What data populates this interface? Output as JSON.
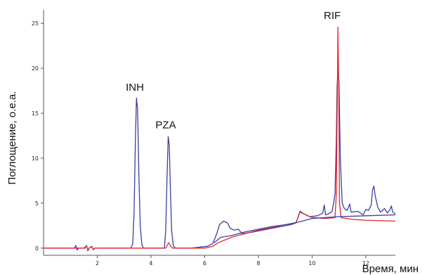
{
  "chart_data": {
    "type": "line",
    "title": "",
    "xlabel": "Время, мин",
    "ylabel": "Поглощение, о.е.а.",
    "xlim": [
      0,
      13.1
    ],
    "ylim": [
      -0.8,
      26.5
    ],
    "x_ticks": [
      2,
      4,
      6,
      8,
      10,
      12
    ],
    "y_ticks": [
      0,
      5,
      10,
      15,
      20,
      25
    ],
    "x_tick_labels": [
      "2",
      "4",
      "6",
      "8",
      "10",
      "12"
    ],
    "y_tick_labels": [
      "0",
      "5",
      "10",
      "15",
      "20",
      "25"
    ],
    "grid": false,
    "legend": "none",
    "annotations": [
      {
        "text": "INH",
        "x": 3.4,
        "y": 17.5
      },
      {
        "text": "PZA",
        "x": 4.55,
        "y": 13.3
      },
      {
        "text": "RIF",
        "x": 10.75,
        "y": 25.5
      }
    ],
    "series": [
      {
        "color": "#3b3fa0",
        "points": [
          [
            0,
            0
          ],
          [
            1.15,
            0
          ],
          [
            1.2,
            0.3
          ],
          [
            1.25,
            -0.2
          ],
          [
            1.3,
            0
          ],
          [
            1.55,
            0
          ],
          [
            1.6,
            0.3
          ],
          [
            1.65,
            -0.3
          ],
          [
            1.7,
            0
          ],
          [
            1.8,
            0.2
          ],
          [
            1.85,
            -0.2
          ],
          [
            1.9,
            0
          ],
          [
            3.25,
            0
          ],
          [
            3.32,
            0.5
          ],
          [
            3.37,
            4
          ],
          [
            3.42,
            12
          ],
          [
            3.46,
            16.7
          ],
          [
            3.5,
            15.5
          ],
          [
            3.55,
            8
          ],
          [
            3.6,
            2.5
          ],
          [
            3.66,
            0.4
          ],
          [
            3.72,
            0
          ],
          [
            4.5,
            0
          ],
          [
            4.55,
            2
          ],
          [
            4.6,
            8
          ],
          [
            4.64,
            12.4
          ],
          [
            4.68,
            11.5
          ],
          [
            4.72,
            7
          ],
          [
            4.77,
            2
          ],
          [
            4.83,
            0.3
          ],
          [
            4.9,
            0
          ],
          [
            5.5,
            0
          ],
          [
            6.1,
            0.2
          ],
          [
            6.3,
            0.5
          ],
          [
            6.45,
            1.6
          ],
          [
            6.55,
            2.6
          ],
          [
            6.7,
            3
          ],
          [
            6.85,
            2.8
          ],
          [
            6.95,
            2.2
          ],
          [
            7.1,
            2.0
          ],
          [
            7.25,
            2.1
          ],
          [
            7.4,
            1.6
          ],
          [
            7.8,
            1.8
          ],
          [
            8.5,
            2.2
          ],
          [
            9.2,
            2.6
          ],
          [
            9.4,
            2.8
          ],
          [
            9.55,
            4.1
          ],
          [
            9.7,
            3.8
          ],
          [
            9.9,
            3.5
          ],
          [
            10.2,
            3.6
          ],
          [
            10.4,
            3.9
          ],
          [
            10.45,
            4.8
          ],
          [
            10.5,
            3.7
          ],
          [
            10.6,
            3.8
          ],
          [
            10.75,
            4.1
          ],
          [
            10.85,
            6
          ],
          [
            10.9,
            12
          ],
          [
            10.93,
            18
          ],
          [
            10.96,
            19.7
          ],
          [
            11.0,
            18.5
          ],
          [
            11.05,
            10
          ],
          [
            11.12,
            5
          ],
          [
            11.2,
            4.4
          ],
          [
            11.3,
            4.2
          ],
          [
            11.4,
            4.9
          ],
          [
            11.45,
            4.0
          ],
          [
            11.7,
            4.1
          ],
          [
            11.9,
            3.7
          ],
          [
            12.0,
            4.3
          ],
          [
            12.1,
            4.2
          ],
          [
            12.2,
            4.8
          ],
          [
            12.25,
            6.5
          ],
          [
            12.3,
            6.9
          ],
          [
            12.35,
            5.8
          ],
          [
            12.45,
            4.5
          ],
          [
            12.55,
            4.0
          ],
          [
            12.7,
            4.4
          ],
          [
            12.8,
            3.9
          ],
          [
            12.9,
            4.3
          ],
          [
            12.95,
            4.7
          ],
          [
            13.0,
            4.0
          ],
          [
            13.1,
            3.8
          ]
        ]
      },
      {
        "color": "#e8242a",
        "points": [
          [
            0,
            0
          ],
          [
            1.5,
            0
          ],
          [
            1.6,
            0.25
          ],
          [
            1.65,
            -0.2
          ],
          [
            1.7,
            0
          ],
          [
            1.8,
            0.15
          ],
          [
            1.85,
            -0.15
          ],
          [
            1.9,
            0
          ],
          [
            4.55,
            0
          ],
          [
            4.62,
            0.4
          ],
          [
            4.66,
            0.6
          ],
          [
            4.72,
            0.3
          ],
          [
            4.8,
            0
          ],
          [
            6.0,
            0
          ],
          [
            6.3,
            0.2
          ],
          [
            6.5,
            0.6
          ],
          [
            7.0,
            1.2
          ],
          [
            7.5,
            1.6
          ],
          [
            8.0,
            2.0
          ],
          [
            8.5,
            2.3
          ],
          [
            9.0,
            2.6
          ],
          [
            9.4,
            2.8
          ],
          [
            9.55,
            4.0
          ],
          [
            9.7,
            3.8
          ],
          [
            10.0,
            3.4
          ],
          [
            10.5,
            3.3
          ],
          [
            10.85,
            3.4
          ],
          [
            10.9,
            6
          ],
          [
            10.93,
            14
          ],
          [
            10.96,
            24.6
          ],
          [
            10.99,
            18
          ],
          [
            11.02,
            5
          ],
          [
            11.08,
            3.4
          ],
          [
            11.5,
            3.2
          ],
          [
            12.0,
            3.1
          ],
          [
            13.1,
            3.0
          ]
        ]
      },
      {
        "color": "#3b3fa0",
        "points": [
          [
            6.35,
            0.6
          ],
          [
            6.6,
            1.2
          ],
          [
            7.0,
            1.4
          ],
          [
            7.5,
            1.8
          ],
          [
            8.0,
            2.1
          ],
          [
            8.5,
            2.4
          ],
          [
            9.0,
            2.6
          ],
          [
            9.5,
            2.9
          ],
          [
            10.0,
            3.3
          ],
          [
            10.5,
            3.4
          ],
          [
            11.0,
            3.5
          ],
          [
            12.0,
            3.6
          ],
          [
            13.1,
            3.7
          ]
        ]
      }
    ]
  }
}
